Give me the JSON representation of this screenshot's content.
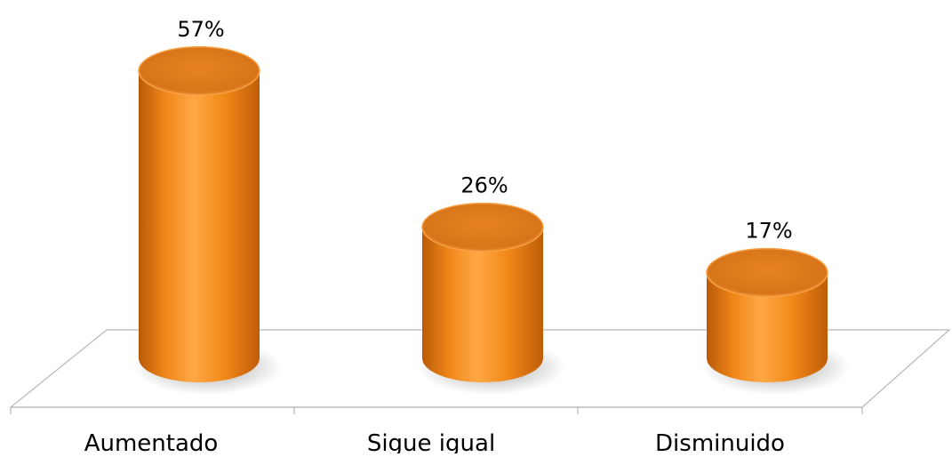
{
  "chart_data": {
    "type": "bar",
    "style": "3d-cylinder",
    "title": "",
    "xlabel": "",
    "ylabel": "",
    "categories": [
      "Aumentado",
      "Sigue igual",
      "Disminuido"
    ],
    "values": [
      57,
      26,
      17
    ],
    "value_labels": [
      "57%",
      "26%",
      "17%"
    ],
    "unit": "%",
    "ylim": [
      0,
      60
    ],
    "grid": false,
    "legend": "none",
    "colors": {
      "bar_base": "#f28a1a",
      "bar_light": "#ffa43a",
      "bar_dark": "#c45f0a",
      "bar_top": "#e07d16",
      "bar_top_rim": "#f7a042",
      "floor_line": "#b8b8b8"
    }
  }
}
